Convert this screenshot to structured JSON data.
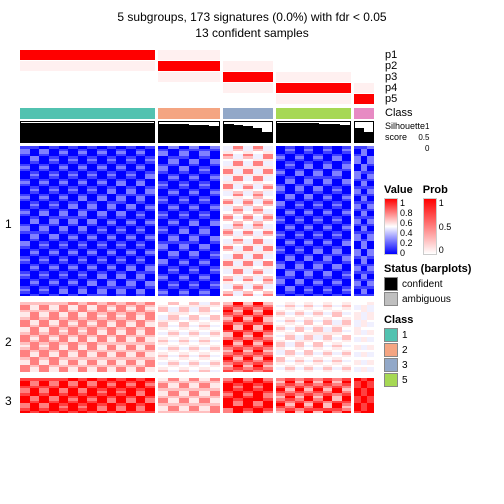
{
  "title_line1": "5 subgroups, 173 signatures (0.0%) with fdr < 0.05",
  "title_line2": "13 confident samples",
  "prob_tracks": [
    "p1",
    "p2",
    "p3",
    "p4",
    "p5"
  ],
  "class_label": "Class",
  "silhouette_label": "Silhouette",
  "score_label": "score",
  "sil_ticks": [
    "1",
    "0.5",
    "0"
  ],
  "column_groups": [
    {
      "width": 135,
      "class_color": "#52c2b0",
      "p_active": 0,
      "sil": [
        0.95,
        0.95,
        0.95,
        0.95,
        0.95,
        0.95,
        0.95,
        0.95,
        0.95,
        0.95,
        0.95,
        0.95
      ]
    },
    {
      "width": 62,
      "class_color": "#f4a582",
      "p_active": 1,
      "sil": [
        0.9,
        0.9,
        0.9,
        0.85,
        0.85,
        0.8
      ]
    },
    {
      "width": 50,
      "class_color": "#92a8c8",
      "p_active": 2,
      "sil": [
        0.9,
        0.85,
        0.8,
        0.7,
        0.5
      ]
    },
    {
      "width": 75,
      "class_color": "#a6d854",
      "p_active": 3,
      "sil": [
        0.95,
        0.95,
        0.95,
        0.95,
        0.9,
        0.9,
        0.85
      ]
    },
    {
      "width": 20,
      "class_color": "#e78ac3",
      "p_active": 4,
      "sil": [
        0.7,
        0.5
      ]
    }
  ],
  "colors": {
    "prob_high": "#ff0000",
    "prob_low": "#ffffff",
    "value_scale": [
      "#0000ff",
      "#4040ff",
      "#8080ff",
      "#c0c0ff",
      "#f0f0ff",
      "#ffffff",
      "#ffeaea",
      "#ffc0c0",
      "#ff8080",
      "#ff4040",
      "#ff0000"
    ],
    "confident": "#000000",
    "ambiguous": "#bfbfbf"
  },
  "row_groups": [
    {
      "label": "1",
      "n_rows": 60,
      "base": 0.05,
      "group_var": [
        0.05,
        0.05,
        0.35,
        0.05,
        0.1
      ]
    },
    {
      "label": "2",
      "n_rows": 28,
      "base": 0.72,
      "group_var": [
        0.72,
        0.55,
        0.85,
        0.55,
        0.5
      ]
    },
    {
      "label": "3",
      "n_rows": 14,
      "base": 0.9,
      "group_var": [
        0.92,
        0.7,
        0.95,
        0.85,
        0.98
      ]
    }
  ],
  "legend": {
    "value_title": "Value",
    "value_ticks": [
      "1",
      "0.8",
      "0.6",
      "0.4",
      "0.2",
      "0"
    ],
    "prob_title": "Prob",
    "prob_ticks": [
      "1",
      "0.5",
      "0"
    ],
    "status_title": "Status (barplots)",
    "status_items": [
      [
        "confident",
        "#000000"
      ],
      [
        "ambiguous",
        "#bfbfbf"
      ]
    ],
    "class_title": "Class",
    "class_items": [
      [
        "1",
        "#52c2b0"
      ],
      [
        "2",
        "#f4a582"
      ],
      [
        "3",
        "#92a8c8"
      ],
      [
        "5",
        "#a6d854"
      ]
    ]
  }
}
